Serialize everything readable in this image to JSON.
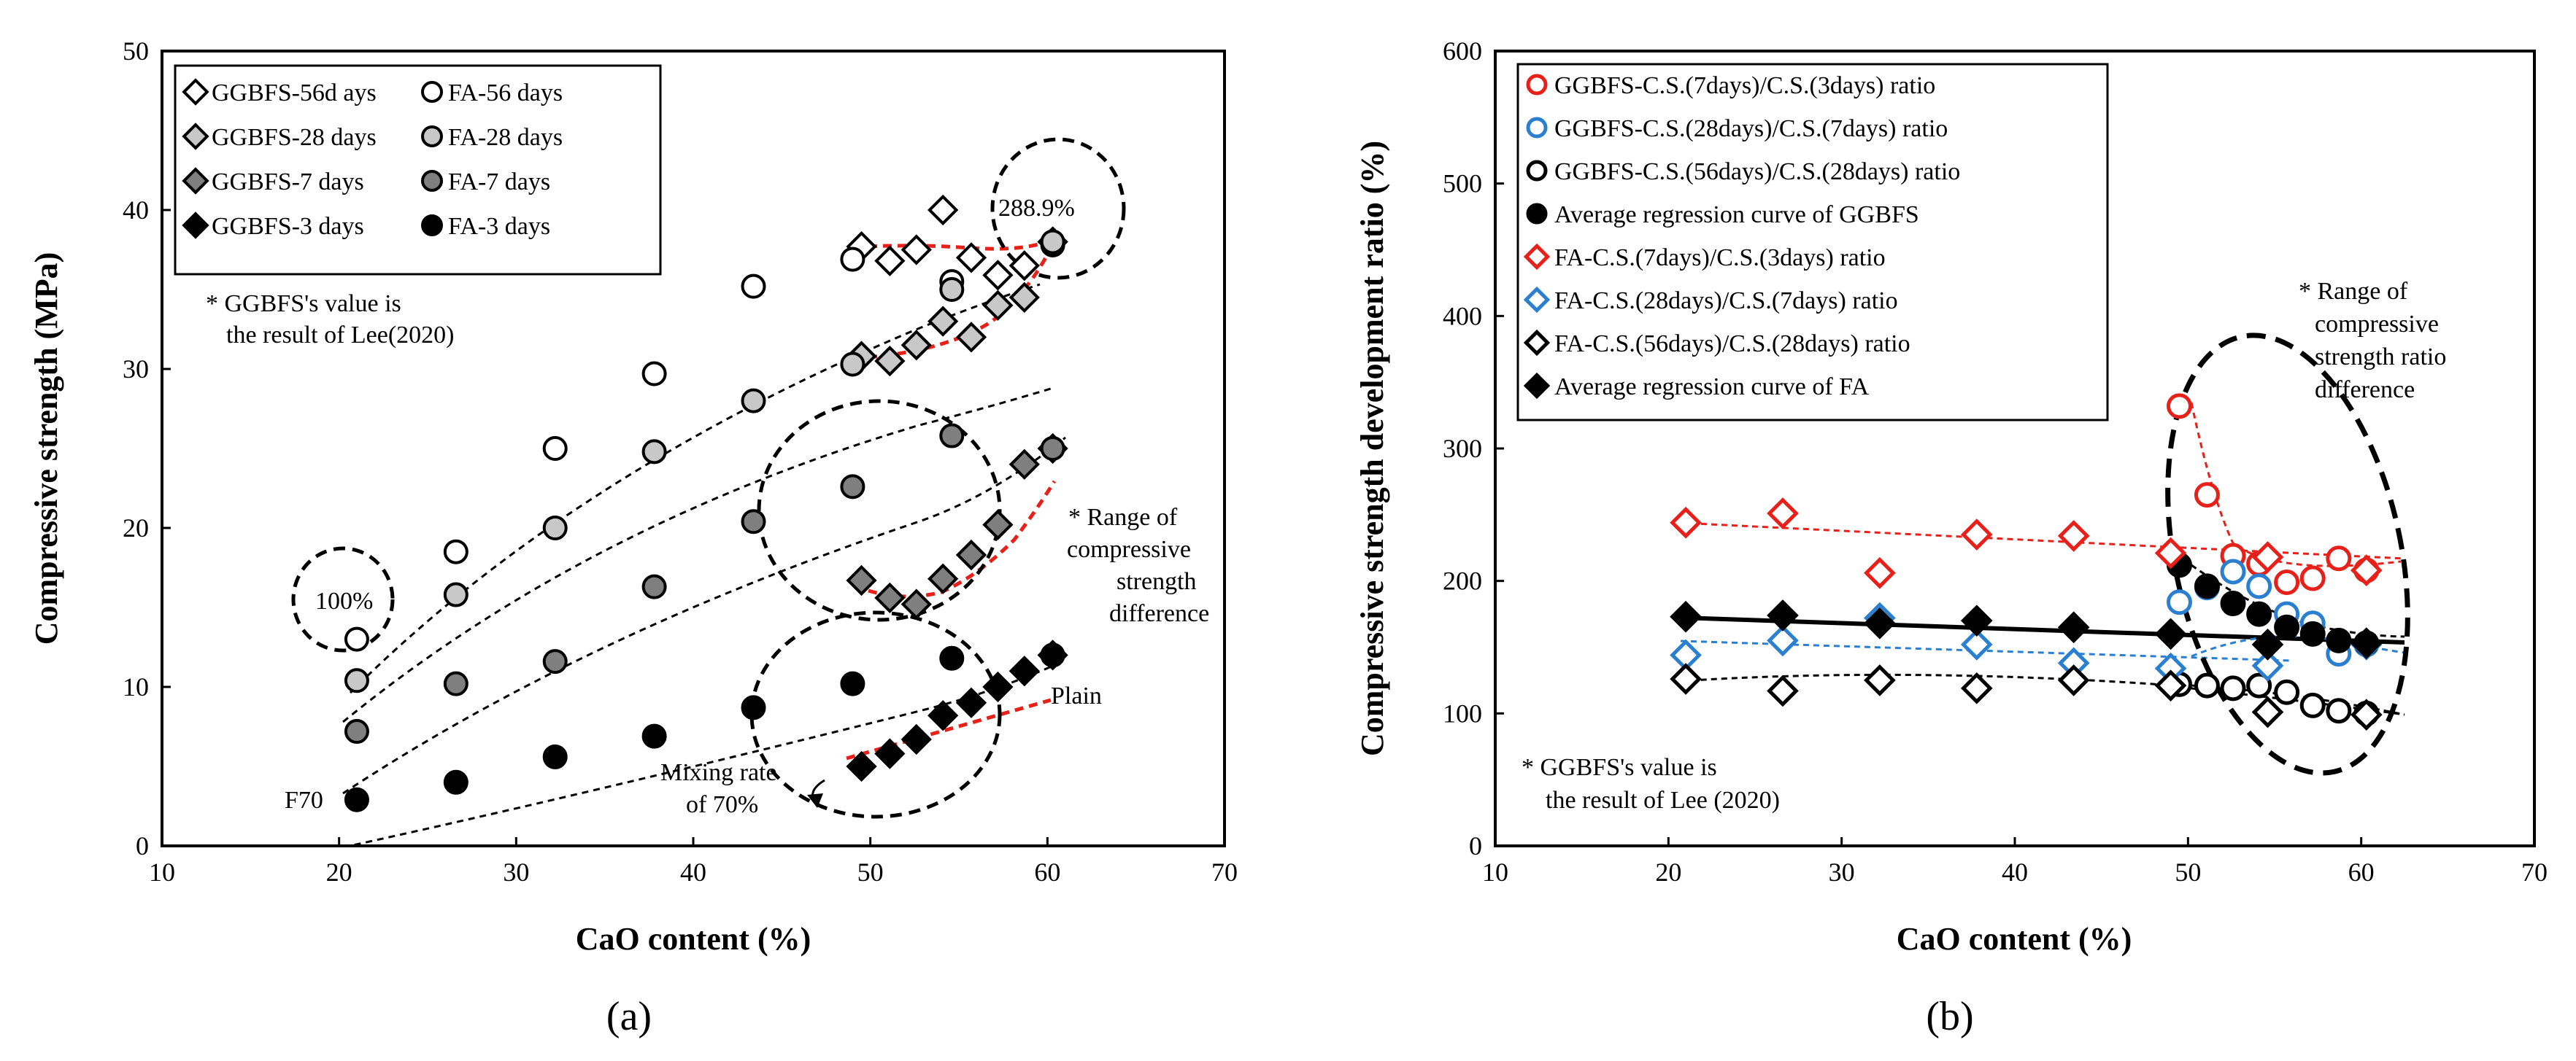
{
  "chart_data": [
    {
      "id": "a",
      "type": "scatter",
      "panel_label": "(a)",
      "xlabel": "CaO content (%)",
      "ylabel": "Compressive strength (MPa)",
      "xlim": [
        10,
        70
      ],
      "ylim": [
        0,
        50
      ],
      "xticks": [
        "10",
        "20",
        "30",
        "40",
        "50",
        "60",
        "70"
      ],
      "yticks": [
        "0",
        "10",
        "20",
        "30",
        "40",
        "50"
      ],
      "legend": {
        "position": "top-left"
      },
      "series": [
        {
          "name": "GGBFS-56d ays",
          "marker": "diamond",
          "fill": "white",
          "points": [
            [
              49.5,
              37.7
            ],
            [
              51.1,
              36.8
            ],
            [
              52.6,
              37.5
            ],
            [
              54.1,
              40.0
            ],
            [
              55.7,
              37.0
            ],
            [
              57.2,
              35.9
            ],
            [
              58.7,
              36.5
            ],
            [
              60.3,
              38.0
            ]
          ]
        },
        {
          "name": "FA-56 days",
          "marker": "circle",
          "fill": "white",
          "points": [
            [
              21.0,
              13.0
            ],
            [
              26.6,
              18.5
            ],
            [
              32.2,
              25.0
            ],
            [
              37.8,
              29.7
            ],
            [
              43.4,
              35.2
            ],
            [
              49.0,
              36.9
            ],
            [
              54.6,
              35.5
            ],
            [
              60.3,
              37.8
            ]
          ]
        },
        {
          "name": "GGBFS-28 days",
          "marker": "diamond",
          "fill": "lightgray",
          "points": [
            [
              49.5,
              30.8
            ],
            [
              51.1,
              30.5
            ],
            [
              52.6,
              31.5
            ],
            [
              54.1,
              33.0
            ],
            [
              55.7,
              32.0
            ],
            [
              57.2,
              34.0
            ],
            [
              58.7,
              34.5
            ],
            [
              60.3,
              38.0
            ]
          ]
        },
        {
          "name": "FA-28 days",
          "marker": "circle",
          "fill": "lightgray",
          "points": [
            [
              21.0,
              10.4
            ],
            [
              26.6,
              15.8
            ],
            [
              32.2,
              20.0
            ],
            [
              37.8,
              24.8
            ],
            [
              43.4,
              28.0
            ],
            [
              49.0,
              30.3
            ],
            [
              54.6,
              35.0
            ],
            [
              60.3,
              38.0
            ]
          ]
        },
        {
          "name": "GGBFS-7 days",
          "marker": "diamond",
          "fill": "gray",
          "points": [
            [
              49.5,
              16.7
            ],
            [
              51.1,
              15.6
            ],
            [
              52.6,
              15.2
            ],
            [
              54.1,
              16.8
            ],
            [
              55.7,
              18.3
            ],
            [
              57.2,
              20.2
            ],
            [
              58.7,
              24.0
            ],
            [
              60.3,
              25.0
            ]
          ]
        },
        {
          "name": "FA-7 days",
          "marker": "circle",
          "fill": "gray",
          "points": [
            [
              21.0,
              7.2
            ],
            [
              26.6,
              10.2
            ],
            [
              32.2,
              11.6
            ],
            [
              37.8,
              16.3
            ],
            [
              43.4,
              20.4
            ],
            [
              49.0,
              22.6
            ],
            [
              54.6,
              25.8
            ],
            [
              60.3,
              25.0
            ]
          ]
        },
        {
          "name": "GGBFS-3 days",
          "marker": "diamond",
          "fill": "black",
          "points": [
            [
              49.5,
              5.0
            ],
            [
              51.1,
              5.8
            ],
            [
              52.6,
              6.7
            ],
            [
              54.1,
              8.2
            ],
            [
              55.7,
              9.0
            ],
            [
              57.2,
              10.0
            ],
            [
              58.7,
              11.0
            ],
            [
              60.3,
              12.0
            ]
          ]
        },
        {
          "name": "FA-3 days",
          "marker": "circle",
          "fill": "black",
          "points": [
            [
              21.0,
              2.9
            ],
            [
              26.6,
              4.0
            ],
            [
              32.2,
              5.6
            ],
            [
              37.8,
              6.9
            ],
            [
              43.4,
              8.7
            ],
            [
              49.0,
              10.2
            ],
            [
              54.6,
              11.8
            ],
            [
              60.3,
              12.0
            ]
          ]
        }
      ],
      "annotations": {
        "note_line1": "* GGBFS's value  is",
        "note_line2": "the result of Lee(2020)",
        "label_100": "100%",
        "label_2889": "288.9%",
        "range_line1": "* Range of",
        "range_line2": "compressive",
        "range_line3": "strength",
        "range_line4": "difference",
        "plain": "Plain",
        "f70": "F70",
        "mixing_line1": "Mixing rate",
        "mixing_line2": "of 70%"
      }
    },
    {
      "id": "b",
      "type": "scatter",
      "panel_label": "(b)",
      "xlabel": "CaO content (%)",
      "ylabel": "Compressive strength development ratio (%)",
      "xlim": [
        10,
        70
      ],
      "ylim": [
        0,
        600
      ],
      "xticks": [
        "10",
        "20",
        "30",
        "40",
        "50",
        "60",
        "70"
      ],
      "yticks": [
        "0",
        "100",
        "200",
        "300",
        "400",
        "500",
        "600"
      ],
      "legend": {
        "position": "top-left"
      },
      "series": [
        {
          "name": "GGBFS-C.S.(7days)/C.S.(3days) ratio",
          "marker": "circle",
          "color": "#e8201a",
          "points": [
            [
              49.5,
              332
            ],
            [
              51.1,
              265
            ],
            [
              52.6,
              219
            ],
            [
              54.1,
              213
            ],
            [
              55.7,
              199
            ],
            [
              57.2,
              202
            ],
            [
              58.7,
              217
            ],
            [
              60.3,
              208
            ]
          ]
        },
        {
          "name": "GGBFS-C.S.(28days)/C.S.(7days) ratio",
          "marker": "circle",
          "color": "#2a7fd0",
          "points": [
            [
              49.5,
              184
            ],
            [
              51.1,
              195
            ],
            [
              52.6,
              207
            ],
            [
              54.1,
              196
            ],
            [
              55.7,
              175
            ],
            [
              57.2,
              168
            ],
            [
              58.7,
              145
            ],
            [
              60.3,
              152
            ]
          ]
        },
        {
          "name": "GGBFS-C.S.(56days)/C.S.(28days) ratio",
          "marker": "circle",
          "color": "#000000",
          "points": [
            [
              49.5,
              122
            ],
            [
              51.1,
              121
            ],
            [
              52.6,
              119
            ],
            [
              54.1,
              121
            ],
            [
              55.7,
              116
            ],
            [
              57.2,
              106
            ],
            [
              58.7,
              102
            ],
            [
              60.3,
              100
            ]
          ]
        },
        {
          "name": "Average regression curve of GGBFS",
          "marker": "circle",
          "color": "#000000",
          "filled": true,
          "points": [
            [
              49.5,
              212
            ],
            [
              51.1,
              196
            ],
            [
              52.6,
              183
            ],
            [
              54.1,
              175
            ],
            [
              55.7,
              165
            ],
            [
              57.2,
              160
            ],
            [
              58.7,
              155
            ],
            [
              60.3,
              153
            ]
          ]
        },
        {
          "name": "FA-C.S.(7days)/C.S.(3days) ratio",
          "marker": "diamond",
          "color": "#e8201a",
          "points": [
            [
              21.0,
              244
            ],
            [
              26.6,
              251
            ],
            [
              32.2,
              206
            ],
            [
              37.8,
              235
            ],
            [
              43.4,
              234
            ],
            [
              49.0,
              221
            ],
            [
              54.6,
              218
            ],
            [
              60.3,
              208
            ]
          ]
        },
        {
          "name": "FA-C.S.(28days)/C.S.(7days) ratio",
          "marker": "diamond",
          "color": "#2a7fd0",
          "points": [
            [
              21.0,
              144
            ],
            [
              26.6,
              155
            ],
            [
              32.2,
              172
            ],
            [
              37.8,
              152
            ],
            [
              43.4,
              138
            ],
            [
              49.0,
              134
            ],
            [
              54.6,
              136
            ],
            [
              60.3,
              152
            ]
          ]
        },
        {
          "name": "FA-C.S.(56days)/C.S.(28days) ratio",
          "marker": "diamond",
          "color": "#000000",
          "points": [
            [
              21.0,
              126
            ],
            [
              26.6,
              117
            ],
            [
              32.2,
              125
            ],
            [
              37.8,
              119
            ],
            [
              43.4,
              125
            ],
            [
              49.0,
              121
            ],
            [
              54.6,
              101
            ],
            [
              60.3,
              99
            ]
          ]
        },
        {
          "name": "Average regression curve of FA",
          "marker": "diamond",
          "color": "#000000",
          "filled": true,
          "points": [
            [
              21.0,
              173
            ],
            [
              26.6,
              174
            ],
            [
              32.2,
              168
            ],
            [
              37.8,
              170
            ],
            [
              43.4,
              165
            ],
            [
              49.0,
              160
            ],
            [
              54.6,
              152
            ],
            [
              60.3,
              153
            ]
          ]
        }
      ],
      "annotations": {
        "note_line1": "* GGBFS's value is",
        "note_line2": "the result of Lee (2020)",
        "range_line1": "* Range of",
        "range_line2": "compressive",
        "range_line3": "strength ratio",
        "range_line4": "difference"
      }
    }
  ]
}
